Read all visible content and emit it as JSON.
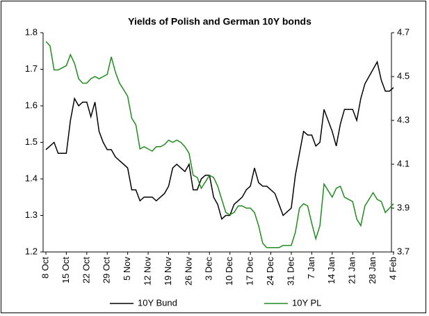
{
  "chart_data": {
    "type": "line",
    "title": "Yields of Polish and German 10Y bonds",
    "categories": [
      "8 Oct",
      null,
      null,
      null,
      null,
      "15 Oct",
      null,
      null,
      null,
      null,
      "22 Oct",
      null,
      null,
      null,
      null,
      "29 Oct",
      null,
      null,
      null,
      null,
      "5 Nov",
      null,
      null,
      null,
      null,
      "12 Nov",
      null,
      null,
      null,
      null,
      "19 Nov",
      null,
      null,
      null,
      null,
      "26 Nov",
      null,
      null,
      null,
      null,
      "3 Dec",
      null,
      null,
      null,
      null,
      "10 Dec",
      null,
      null,
      null,
      null,
      "17 Dec",
      null,
      null,
      null,
      null,
      "24 Dec",
      null,
      null,
      null,
      null,
      "31 Dec",
      null,
      null,
      null,
      null,
      "7 Jan",
      null,
      null,
      null,
      null,
      "14 Jan",
      null,
      null,
      null,
      null,
      "21 Jan",
      null,
      null,
      null,
      null,
      "28 Jan",
      null,
      null,
      null,
      null,
      "4 Feb"
    ],
    "series": [
      {
        "name": "10Y Bund",
        "color": "#000000",
        "values": [
          1.48,
          1.49,
          1.5,
          1.47,
          1.47,
          1.47,
          1.56,
          1.62,
          1.6,
          1.61,
          1.61,
          1.57,
          1.61,
          1.53,
          1.5,
          1.48,
          1.48,
          1.46,
          1.45,
          1.44,
          1.43,
          1.37,
          1.37,
          1.34,
          1.35,
          1.35,
          1.35,
          1.34,
          1.35,
          1.36,
          1.38,
          1.43,
          1.44,
          1.43,
          1.42,
          1.44,
          1.37,
          1.37,
          1.4,
          1.41,
          1.41,
          1.35,
          1.33,
          1.29,
          1.3,
          1.3,
          1.33,
          1.34,
          1.35,
          1.37,
          1.38,
          1.43,
          1.39,
          1.38,
          1.38,
          1.37,
          1.36,
          1.33,
          1.3,
          1.31,
          1.32,
          1.41,
          1.47,
          1.53,
          1.52,
          1.52,
          1.49,
          1.5,
          1.59,
          1.56,
          1.53,
          1.49,
          1.55,
          1.59,
          1.59,
          1.59,
          1.56,
          1.62,
          1.66,
          1.68,
          1.7,
          1.72,
          1.67,
          1.64,
          1.64,
          1.65
        ]
      },
      {
        "name": "10Y PL",
        "color": "#1e8c1e",
        "axis": "y2",
        "values": [
          4.66,
          4.64,
          4.53,
          4.53,
          4.54,
          4.55,
          4.6,
          4.56,
          4.49,
          4.47,
          4.47,
          4.49,
          4.5,
          4.49,
          4.5,
          4.51,
          4.59,
          4.52,
          4.47,
          4.44,
          4.41,
          4.31,
          4.28,
          4.17,
          4.18,
          4.17,
          4.16,
          4.18,
          4.18,
          4.19,
          4.21,
          4.2,
          4.21,
          4.2,
          4.18,
          4.15,
          4.05,
          4.04,
          3.99,
          4.02,
          4.05,
          4.04,
          4.0,
          3.94,
          3.88,
          3.87,
          3.88,
          3.91,
          3.91,
          3.9,
          3.9,
          3.88,
          3.82,
          3.74,
          3.72,
          3.72,
          3.72,
          3.72,
          3.73,
          3.73,
          3.73,
          3.79,
          3.9,
          3.92,
          3.91,
          3.83,
          3.76,
          3.82,
          4.01,
          3.98,
          3.95,
          3.99,
          4.0,
          3.95,
          3.94,
          3.93,
          3.85,
          3.82,
          3.91,
          3.94,
          3.97,
          3.94,
          3.93,
          3.88,
          3.9,
          3.92
        ]
      }
    ],
    "ylim": [
      1.2,
      1.8
    ],
    "yticks": [
      1.2,
      1.3,
      1.4,
      1.5,
      1.6,
      1.7,
      1.8
    ],
    "y2lim": [
      3.7,
      4.7
    ],
    "y2ticks": [
      3.7,
      3.9,
      4.1,
      4.3,
      4.5,
      4.7
    ],
    "legend": "bottom"
  }
}
